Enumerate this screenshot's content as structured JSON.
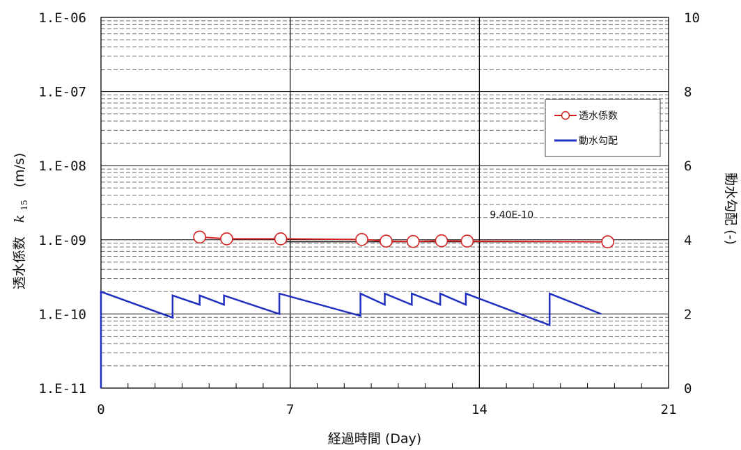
{
  "chart_data": {
    "type": "line",
    "xlabel": "経過時間 (Day)",
    "ylabel_left": "透水係数",
    "ylabel_left_symbol": "k",
    "ylabel_left_subscript": "15",
    "ylabel_left_unit": "(m/s)",
    "ylabel_right": "動水勾配 (-)",
    "xlim": [
      0,
      21
    ],
    "xticks": [
      0,
      7,
      14,
      21
    ],
    "xtick_labels": [
      "0",
      "7",
      "14",
      "21"
    ],
    "ylim_left": [
      1e-11,
      1e-06
    ],
    "yscale_left": "log",
    "yticks_left": [
      1e-11,
      1e-10,
      1e-09,
      1e-08,
      1e-07,
      1e-06
    ],
    "ytick_labels_left": [
      "1.E-11",
      "1.E-10",
      "1.E-09",
      "1.E-08",
      "1.E-07",
      "1.E-06"
    ],
    "ylim_right": [
      0,
      10
    ],
    "yticks_right": [
      0,
      2,
      4,
      6,
      8,
      10
    ],
    "ytick_labels_right": [
      "0",
      "2",
      "4",
      "6",
      "8",
      "10"
    ],
    "grid": "log minor gridlines (dashed), major decade lines (solid), vertical lines at days 7 and 14",
    "legend_position": "upper-right",
    "series": [
      {
        "name": "透水係数",
        "axis": "left",
        "color": "#d62020",
        "marker": "open-circle",
        "x": [
          3.65,
          4.65,
          6.65,
          9.65,
          10.55,
          11.55,
          12.6,
          13.55,
          18.75
        ],
        "y": [
          1.09e-09,
          1.03e-09,
          1.03e-09,
          1.01e-09,
          9.6e-10,
          9.5e-10,
          9.7e-10,
          9.6e-10,
          9.4e-10
        ]
      },
      {
        "name": "動水勾配",
        "axis": "right",
        "color": "#1f2fbf",
        "x": [
          0,
          0,
          2.65,
          2.65,
          3.65,
          3.65,
          4.55,
          4.55,
          6.6,
          6.6,
          9.6,
          9.6,
          10.5,
          10.5,
          11.5,
          11.5,
          12.55,
          12.55,
          13.5,
          13.5,
          16.6,
          16.6,
          18.5
        ],
        "y": [
          0,
          2.6,
          1.9,
          2.5,
          2.25,
          2.5,
          2.25,
          2.5,
          2.0,
          2.55,
          1.95,
          2.55,
          2.25,
          2.55,
          2.25,
          2.55,
          2.25,
          2.55,
          2.25,
          2.55,
          1.7,
          2.55,
          2.0
        ]
      }
    ],
    "annotations": [
      {
        "text": "9.40E-10",
        "x": 14.0,
        "y": 2.2e-09
      }
    ],
    "reference_line": {
      "from_x": 6.65,
      "to_x": 18.75,
      "y": 9.4e-10
    }
  },
  "colors": {
    "major_grid": "#000000",
    "minor_grid": "#6e6e6e",
    "red_series": "#d62020",
    "blue_series": "#1f2fbf"
  }
}
